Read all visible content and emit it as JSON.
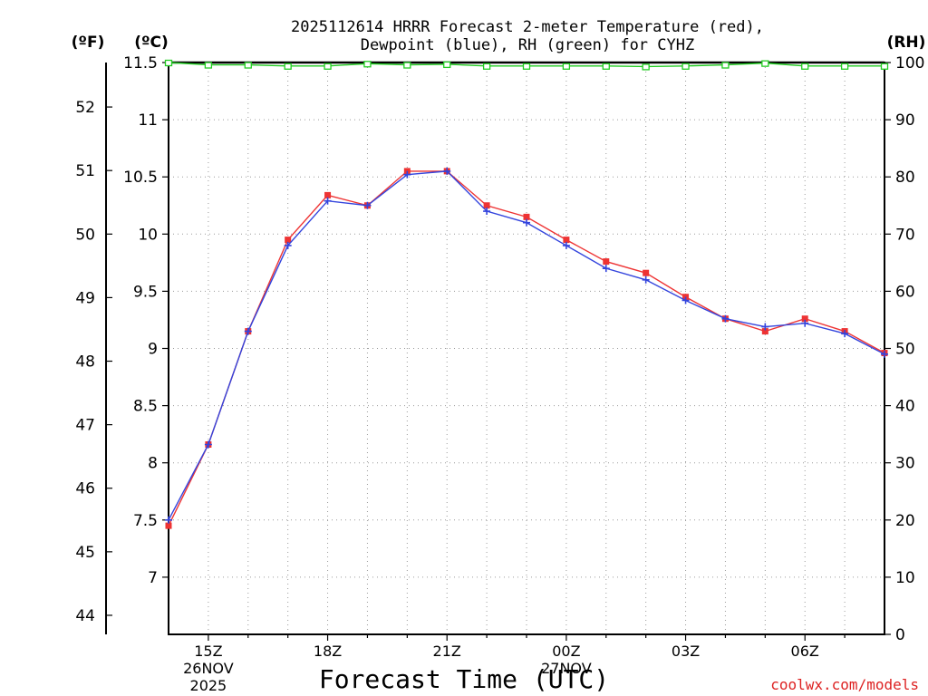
{
  "chart_data": {
    "type": "line",
    "title_line1": "2025112614 HRRR Forecast 2-meter Temperature (red),",
    "title_line2": "Dewpoint (blue), RH (green) for CYHZ",
    "xlabel": "Forecast Time (UTC)",
    "left_outer_label": "(ºF)",
    "left_inner_label": "(ºC)",
    "right_label": "(RH)",
    "credit": "coolwx.com/models",
    "x_hours": [
      14,
      15,
      16,
      17,
      18,
      19,
      20,
      21,
      22,
      23,
      24,
      25,
      26,
      27,
      28,
      29,
      30,
      31,
      32
    ],
    "x_ticks": [
      {
        "hour": 15,
        "label": "15Z",
        "sub": [
          "26NOV",
          "2025"
        ]
      },
      {
        "hour": 18,
        "label": "18Z",
        "sub": []
      },
      {
        "hour": 21,
        "label": "21Z",
        "sub": []
      },
      {
        "hour": 24,
        "label": "00Z",
        "sub": [
          "27NOV"
        ]
      },
      {
        "hour": 27,
        "label": "03Z",
        "sub": []
      },
      {
        "hour": 30,
        "label": "06Z",
        "sub": []
      }
    ],
    "xlim": [
      14,
      32
    ],
    "celsius_axis": {
      "range": [
        6.5,
        11.5
      ],
      "ticks": [
        "7",
        "7.5",
        "8",
        "8.5",
        "9",
        "9.5",
        "10",
        "10.5",
        "11",
        "11.5"
      ]
    },
    "fahrenheit_axis": {
      "ticks": [
        "44",
        "45",
        "46",
        "47",
        "48",
        "49",
        "50",
        "51",
        "52"
      ]
    },
    "rh_axis": {
      "range": [
        0,
        100
      ],
      "ticks": [
        "0",
        "10",
        "20",
        "30",
        "40",
        "50",
        "60",
        "70",
        "80",
        "90",
        "100"
      ]
    },
    "grid": true,
    "series": [
      {
        "name": "Temperature",
        "color": "#ee3333",
        "marker": "square",
        "axis": "celsius",
        "values": [
          7.45,
          8.16,
          9.15,
          9.95,
          10.34,
          10.25,
          10.55,
          10.55,
          10.25,
          10.15,
          9.95,
          9.76,
          9.66,
          9.45,
          9.26,
          9.15,
          9.26,
          9.15,
          8.96
        ]
      },
      {
        "name": "Dewpoint",
        "color": "#3344dd",
        "marker": "plus",
        "axis": "celsius",
        "values": [
          7.5,
          8.16,
          9.15,
          9.9,
          10.29,
          10.25,
          10.52,
          10.55,
          10.2,
          10.1,
          9.9,
          9.7,
          9.6,
          9.42,
          9.26,
          9.19,
          9.22,
          9.13,
          8.95
        ]
      },
      {
        "name": "RH",
        "color": "#22cc22",
        "marker": "open-square",
        "axis": "rh",
        "values": [
          100,
          99.6,
          99.6,
          99.4,
          99.4,
          99.8,
          99.6,
          99.7,
          99.4,
          99.4,
          99.4,
          99.4,
          99.3,
          99.4,
          99.6,
          99.9,
          99.4,
          99.4,
          99.4
        ]
      }
    ]
  }
}
